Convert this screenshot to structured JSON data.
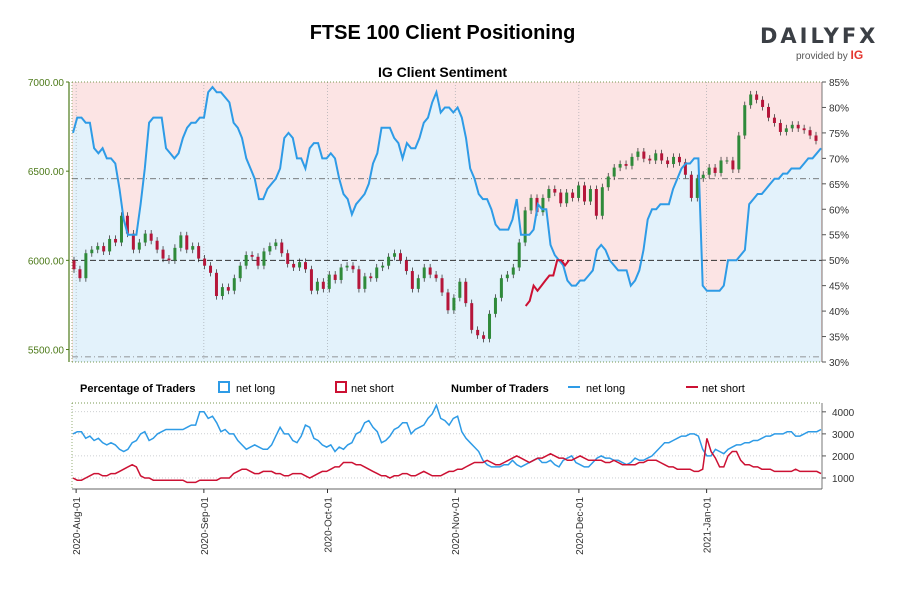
{
  "header": {
    "title": "FTSE 100 Client Positioning",
    "subtitle": "IG Client Sentiment"
  },
  "logo": {
    "brand": "DAILYFX",
    "provided_by": "provided by",
    "ig": "IG"
  },
  "legend": {
    "pct_heading": "Percentage of Traders",
    "num_heading": "Number of Traders",
    "net_long": "net long",
    "net_short": "net short"
  },
  "colors": {
    "long": "#2e9be6",
    "short": "#cc1133",
    "long_fill": "#e3f2fb",
    "short_fill": "#fce4e4",
    "candle_up": "#2f8a3a",
    "candle_down": "#b5163a"
  },
  "chart_data": [
    {
      "type": "line",
      "name": "price-and-sentiment",
      "x_range": [
        "2020-07-31",
        "2021-01-29"
      ],
      "x_ticks": [
        "2020-Aug-01",
        "2020-Sep-01",
        "2020-Oct-01",
        "2020-Nov-01",
        "2020-Dec-01",
        "2021-Jan-01"
      ],
      "y_left_ticks": [
        "5500.00",
        "6000.00",
        "6500.00",
        "7000.00"
      ],
      "y_left_range": [
        5430,
        7000
      ],
      "y_right_ticks": [
        "30%",
        "35%",
        "40%",
        "45%",
        "50%",
        "55%",
        "60%",
        "65%",
        "70%",
        "75%",
        "80%",
        "85%"
      ],
      "y_right_range": [
        30,
        85
      ],
      "reference_levels": {
        "price": 6000,
        "pct_50": 50,
        "pct_66": 66,
        "pct_31": 31
      },
      "price_candles": [
        [
          6000,
          5950
        ],
        [
          5950,
          5900
        ],
        [
          5900,
          6040
        ],
        [
          6040,
          6060
        ],
        [
          6060,
          6080
        ],
        [
          6080,
          6050
        ],
        [
          6050,
          6120
        ],
        [
          6120,
          6100
        ],
        [
          6100,
          6250
        ],
        [
          6250,
          6150
        ],
        [
          6150,
          6060
        ],
        [
          6060,
          6100
        ],
        [
          6100,
          6150
        ],
        [
          6150,
          6110
        ],
        [
          6110,
          6060
        ],
        [
          6060,
          6010
        ],
        [
          6010,
          6000
        ],
        [
          6000,
          6070
        ],
        [
          6070,
          6140
        ],
        [
          6140,
          6060
        ],
        [
          6060,
          6080
        ],
        [
          6080,
          6010
        ],
        [
          6010,
          5970
        ],
        [
          5970,
          5930
        ],
        [
          5930,
          5800
        ],
        [
          5800,
          5850
        ],
        [
          5850,
          5830
        ],
        [
          5830,
          5900
        ],
        [
          5900,
          5970
        ],
        [
          5970,
          6030
        ],
        [
          6030,
          6020
        ],
        [
          6020,
          5970
        ],
        [
          5970,
          6050
        ],
        [
          6050,
          6080
        ],
        [
          6080,
          6100
        ],
        [
          6100,
          6040
        ],
        [
          6040,
          5980
        ],
        [
          5980,
          5960
        ],
        [
          5960,
          5990
        ],
        [
          5990,
          5950
        ],
        [
          5950,
          5830
        ],
        [
          5830,
          5880
        ],
        [
          5880,
          5840
        ],
        [
          5840,
          5920
        ],
        [
          5920,
          5890
        ],
        [
          5890,
          5960
        ],
        [
          5960,
          5970
        ],
        [
          5970,
          5950
        ],
        [
          5950,
          5840
        ],
        [
          5840,
          5910
        ],
        [
          5910,
          5900
        ],
        [
          5900,
          5960
        ],
        [
          5960,
          5970
        ],
        [
          5970,
          6020
        ],
        [
          6020,
          6040
        ],
        [
          6040,
          6000
        ],
        [
          6000,
          5940
        ],
        [
          5940,
          5840
        ],
        [
          5840,
          5900
        ],
        [
          5900,
          5960
        ],
        [
          5960,
          5920
        ],
        [
          5920,
          5900
        ],
        [
          5900,
          5820
        ],
        [
          5820,
          5720
        ],
        [
          5720,
          5790
        ],
        [
          5790,
          5880
        ],
        [
          5880,
          5760
        ],
        [
          5760,
          5610
        ],
        [
          5610,
          5580
        ],
        [
          5580,
          5560
        ],
        [
          5560,
          5700
        ],
        [
          5700,
          5790
        ],
        [
          5790,
          5900
        ],
        [
          5900,
          5920
        ],
        [
          5920,
          5960
        ],
        [
          5960,
          6100
        ],
        [
          6100,
          6280
        ],
        [
          6280,
          6350
        ],
        [
          6350,
          6270
        ],
        [
          6270,
          6350
        ],
        [
          6350,
          6400
        ],
        [
          6400,
          6380
        ],
        [
          6380,
          6320
        ],
        [
          6320,
          6380
        ],
        [
          6380,
          6350
        ],
        [
          6350,
          6420
        ],
        [
          6420,
          6330
        ],
        [
          6330,
          6400
        ],
        [
          6400,
          6250
        ],
        [
          6250,
          6410
        ],
        [
          6410,
          6470
        ],
        [
          6470,
          6520
        ],
        [
          6520,
          6540
        ],
        [
          6540,
          6530
        ],
        [
          6530,
          6580
        ],
        [
          6580,
          6610
        ],
        [
          6610,
          6570
        ],
        [
          6570,
          6560
        ],
        [
          6560,
          6600
        ],
        [
          6600,
          6560
        ],
        [
          6560,
          6540
        ],
        [
          6540,
          6580
        ],
        [
          6580,
          6550
        ],
        [
          6550,
          6480
        ],
        [
          6480,
          6350
        ],
        [
          6350,
          6460
        ],
        [
          6460,
          6480
        ],
        [
          6480,
          6520
        ],
        [
          6520,
          6490
        ],
        [
          6490,
          6560
        ],
        [
          6560,
          6560
        ],
        [
          6560,
          6510
        ],
        [
          6510,
          6700
        ],
        [
          6700,
          6870
        ],
        [
          6870,
          6930
        ],
        [
          6930,
          6900
        ],
        [
          6900,
          6860
        ],
        [
          6860,
          6800
        ],
        [
          6800,
          6770
        ],
        [
          6770,
          6720
        ],
        [
          6720,
          6740
        ],
        [
          6740,
          6760
        ],
        [
          6760,
          6740
        ],
        [
          6740,
          6730
        ],
        [
          6730,
          6700
        ],
        [
          6700,
          6670
        ]
      ],
      "net_long_pct": [
        75,
        78,
        78,
        77,
        77,
        72,
        71,
        72,
        70,
        70,
        69,
        64,
        58,
        55,
        55,
        55,
        61,
        68,
        77,
        78,
        78,
        78,
        72,
        71,
        70,
        71,
        74,
        76,
        77,
        77,
        78,
        78,
        83,
        84,
        83,
        83,
        82,
        81,
        77,
        76,
        74,
        70,
        68,
        66,
        62,
        62,
        64,
        65,
        66,
        68,
        74,
        75,
        74,
        70,
        70,
        68,
        72,
        73,
        73,
        70,
        70,
        71,
        70,
        66,
        63,
        62,
        59,
        61,
        62,
        63,
        65,
        69,
        71,
        76,
        76,
        76,
        74,
        73,
        70,
        73,
        72,
        72,
        74,
        77,
        78,
        81,
        83,
        79,
        80,
        80,
        79,
        80,
        78,
        74,
        68,
        66,
        63,
        62,
        62,
        60,
        57,
        56,
        56,
        56,
        58,
        62,
        55,
        55,
        55,
        56,
        61,
        60,
        60,
        53,
        51,
        50,
        49,
        46,
        45,
        45,
        46,
        46,
        47,
        48,
        52,
        53,
        52,
        50,
        49,
        48,
        48,
        48,
        45,
        46,
        48,
        52,
        58,
        60,
        60,
        61,
        61,
        61,
        64,
        66,
        68,
        69,
        69,
        70,
        70,
        45,
        44,
        44,
        44,
        44,
        45,
        50,
        50,
        50,
        51,
        52,
        61,
        62,
        63,
        63,
        64,
        65,
        66,
        66,
        67,
        67,
        68,
        68,
        68,
        69,
        70,
        70,
        71,
        72
      ],
      "net_short_pct": [
        null,
        null,
        null,
        null,
        null,
        null,
        null,
        null,
        null,
        null,
        null,
        null,
        null,
        null,
        null,
        null,
        null,
        null,
        null,
        null,
        null,
        null,
        null,
        null,
        null,
        null,
        null,
        null,
        null,
        null,
        null,
        null,
        null,
        null,
        null,
        null,
        null,
        null,
        null,
        null,
        null,
        null,
        null,
        null,
        null,
        null,
        null,
        null,
        null,
        null,
        null,
        null,
        null,
        null,
        null,
        null,
        null,
        null,
        null,
        null,
        null,
        null,
        null,
        null,
        null,
        null,
        null,
        null,
        null,
        null,
        null,
        null,
        null,
        null,
        null,
        null,
        null,
        null,
        null,
        null,
        null,
        null,
        null,
        null,
        null,
        null,
        null,
        null,
        null,
        null,
        null,
        null,
        null,
        null,
        null,
        null,
        null,
        null,
        null,
        null,
        null,
        null,
        null,
        null,
        null,
        null,
        null,
        null,
        null,
        null,
        null,
        null,
        null,
        null,
        null,
        41,
        42,
        45,
        44,
        45,
        46,
        47,
        47,
        50,
        50,
        49,
        50,
        null,
        null,
        null,
        null,
        null,
        null,
        null,
        null,
        null,
        null,
        null,
        null,
        null,
        null,
        null,
        null,
        null,
        null,
        null,
        null,
        null,
        null,
        null,
        null,
        null,
        null,
        null,
        null,
        null,
        null,
        null,
        null,
        null,
        null,
        null,
        null,
        null,
        null,
        null,
        null,
        null,
        null,
        null,
        null,
        null,
        null,
        null,
        null,
        null,
        null,
        null,
        null,
        null,
        null,
        null,
        null,
        null,
        null,
        null,
        null,
        null,
        null,
        null,
        null
      ]
    },
    {
      "type": "line",
      "name": "number-of-traders",
      "x_range": [
        "2020-07-31",
        "2021-01-29"
      ],
      "y_ticks": [
        "1000",
        "2000",
        "3000",
        "4000"
      ],
      "y_range": [
        500,
        4400
      ],
      "series": [
        {
          "name": "net long",
          "values": [
            3000,
            3100,
            3100,
            2800,
            2900,
            2700,
            2800,
            2600,
            2500,
            2600,
            2500,
            2300,
            2200,
            2300,
            2600,
            2700,
            3000,
            3100,
            2700,
            2800,
            3000,
            3100,
            3200,
            3200,
            3200,
            3200,
            3200,
            3300,
            3400,
            3400,
            4000,
            4000,
            3700,
            3800,
            3500,
            3100,
            3200,
            3000,
            3000,
            2700,
            2500,
            2300,
            2400,
            2500,
            2400,
            2300,
            2300,
            2500,
            2900,
            3300,
            3000,
            3000,
            2700,
            2600,
            2900,
            3400,
            3300,
            2800,
            2700,
            2500,
            2400,
            2500,
            2200,
            2400,
            2300,
            2500,
            2600,
            3000,
            3100,
            3500,
            3600,
            3300,
            3100,
            2600,
            2700,
            2900,
            3200,
            3300,
            3500,
            3500,
            3000,
            3200,
            3300,
            3400,
            3700,
            3900,
            4300,
            3700,
            3600,
            3400,
            3700,
            3800,
            3100,
            2800,
            2600,
            2400,
            2200,
            1800,
            1600,
            1500,
            1500,
            1500,
            1600,
            1600,
            1800,
            1600,
            1500,
            1600,
            1700,
            1800,
            1900,
            1700,
            1700,
            1800,
            1600,
            1500,
            1800,
            1900,
            2000,
            1700,
            1600,
            1500,
            1500,
            1700,
            1900,
            2000,
            1900,
            1900,
            1800,
            1800,
            1700,
            1600,
            1700,
            1900,
            1800,
            1800,
            1900,
            2000,
            2200,
            2400,
            2600,
            2600,
            2700,
            2800,
            2900,
            2900,
            3000,
            3000,
            2900,
            2300,
            2000,
            2000,
            2300,
            2200,
            2100,
            2300,
            2400,
            2500,
            2500,
            2600,
            2600,
            2700,
            2700,
            2800,
            2900,
            2900,
            3000,
            3000,
            3000,
            3100,
            3100,
            2900,
            2900,
            3000,
            3100,
            3100,
            3100,
            3200
          ]
        },
        {
          "name": "net short",
          "values": [
            1000,
            900,
            900,
            1000,
            1100,
            1200,
            1200,
            1100,
            1100,
            1200,
            1200,
            1300,
            1400,
            1500,
            1600,
            1500,
            1100,
            1000,
            1000,
            900,
            900,
            900,
            900,
            900,
            900,
            900,
            900,
            800,
            800,
            800,
            900,
            900,
            900,
            900,
            900,
            1000,
            1000,
            1000,
            1200,
            1300,
            1400,
            1400,
            1300,
            1200,
            1200,
            1300,
            1300,
            1300,
            1200,
            1200,
            1100,
            1100,
            1200,
            1200,
            1200,
            1100,
            1000,
            1100,
            1200,
            1300,
            1300,
            1400,
            1500,
            1500,
            1700,
            1700,
            1700,
            1600,
            1600,
            1500,
            1400,
            1300,
            1200,
            1100,
            1100,
            1000,
            1100,
            1100,
            1200,
            1200,
            1100,
            1100,
            1200,
            1300,
            1200,
            1100,
            1100,
            1100,
            1200,
            1300,
            1300,
            1400,
            1400,
            1500,
            1600,
            1700,
            1700,
            1700,
            1800,
            1700,
            1600,
            1600,
            1700,
            1800,
            1900,
            2000,
            1900,
            1800,
            1700,
            1800,
            1900,
            1900,
            2000,
            2100,
            2000,
            1900,
            1900,
            1800,
            1800,
            1900,
            2000,
            1900,
            1800,
            1800,
            1800,
            1800,
            1700,
            1700,
            1800,
            1700,
            1600,
            1600,
            1600,
            1600,
            1700,
            1700,
            1800,
            1800,
            1800,
            1700,
            1600,
            1500,
            1500,
            1400,
            1400,
            1400,
            1400,
            1300,
            1300,
            1400,
            2800,
            2200,
            1900,
            1500,
            1500,
            2000,
            2200,
            2200,
            1800,
            1600,
            1600,
            1500,
            1500,
            1400,
            1400,
            1400,
            1300,
            1300,
            1300,
            1300,
            1300,
            1400,
            1300,
            1300,
            1300,
            1300,
            1300,
            1200
          ]
        }
      ]
    }
  ]
}
